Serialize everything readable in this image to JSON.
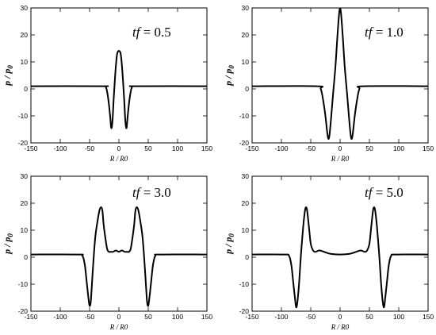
{
  "chart_data": [
    {
      "type": "line",
      "annotation": {
        "var": "tf",
        "value": "= 0.5"
      },
      "xlabel": "R / R0",
      "ylabel_main": "p",
      "ylabel_sep": " / ",
      "ylabel_sub_base": "p",
      "ylabel_sub": "0",
      "xlim": [
        -150,
        150
      ],
      "ylim": [
        -20,
        30
      ],
      "xticks": [
        -150,
        -100,
        -50,
        0,
        50,
        100,
        150
      ],
      "yticks": [
        -20,
        -10,
        0,
        10,
        20,
        30
      ],
      "series": [
        {
          "x": [
            -150,
            -30,
            -22,
            -18,
            -15,
            -13,
            -11,
            -9,
            -7,
            -5,
            -3,
            -1,
            0,
            1,
            3,
            5,
            7,
            9,
            11,
            13,
            15,
            18,
            22,
            30,
            150
          ],
          "y": [
            1,
            1,
            0.5,
            -4,
            -10,
            -14.5,
            -12,
            -4,
            3,
            9,
            13,
            14,
            14,
            14,
            13,
            9,
            3,
            -4,
            -12,
            -14.5,
            -10,
            -4,
            0.5,
            1,
            1
          ]
        }
      ]
    },
    {
      "type": "line",
      "annotation": {
        "var": "tf",
        "value": "= 1.0"
      },
      "xlabel": "R / R0",
      "ylabel_main": "p",
      "ylabel_sep": " / ",
      "ylabel_sub_base": "p",
      "ylabel_sub": "0",
      "xlim": [
        -150,
        150
      ],
      "ylim": [
        -20,
        30
      ],
      "xticks": [
        -150,
        -100,
        -50,
        0,
        50,
        100,
        150
      ],
      "yticks": [
        -20,
        -10,
        0,
        10,
        20,
        30
      ],
      "series": [
        {
          "x": [
            -150,
            -40,
            -33,
            -29,
            -25,
            -22,
            -20,
            -18,
            -15,
            -12,
            -8,
            -5,
            -2,
            0,
            2,
            5,
            8,
            12,
            15,
            18,
            20,
            22,
            25,
            29,
            33,
            40,
            150
          ],
          "y": [
            1,
            1,
            0,
            -4,
            -10,
            -16,
            -18.5,
            -17,
            -10,
            -2,
            8,
            18,
            27,
            30,
            27,
            18,
            8,
            -2,
            -10,
            -17,
            -18.5,
            -16,
            -10,
            -4,
            0,
            1,
            1
          ]
        }
      ]
    },
    {
      "type": "line",
      "annotation": {
        "var": "tf",
        "value": "= 3.0"
      },
      "xlabel": "R / R0",
      "ylabel_main": "p",
      "ylabel_sep": " / ",
      "ylabel_sub_base": "p",
      "ylabel_sub": "0",
      "xlim": [
        -150,
        150
      ],
      "ylim": [
        -20,
        30
      ],
      "xticks": [
        -150,
        -100,
        -50,
        0,
        50,
        100,
        150
      ],
      "yticks": [
        -20,
        -10,
        0,
        10,
        20,
        30
      ],
      "series": [
        {
          "x": [
            -150,
            -70,
            -62,
            -58,
            -55,
            -52,
            -50,
            -48,
            -46,
            -43,
            -40,
            -36,
            -33,
            -30,
            -28,
            -26,
            -23,
            -20,
            -17,
            -14,
            -10,
            -5,
            0,
            5,
            10,
            14,
            17,
            20,
            23,
            26,
            28,
            30,
            33,
            36,
            40,
            43,
            46,
            48,
            50,
            52,
            55,
            58,
            62,
            70,
            150
          ],
          "y": [
            1,
            1,
            0.5,
            -3,
            -9,
            -15,
            -18,
            -16.5,
            -10,
            0,
            8,
            14,
            17.5,
            18.5,
            17,
            12,
            7,
            3,
            2,
            2,
            2,
            2.5,
            2,
            2.5,
            2,
            2,
            2,
            3,
            7,
            12,
            17,
            18.5,
            17.5,
            14,
            8,
            0,
            -10,
            -16.5,
            -18,
            -15,
            -9,
            -3,
            0.5,
            1,
            1
          ]
        }
      ]
    },
    {
      "type": "line",
      "annotation": {
        "var": "tf",
        "value": "= 5.0"
      },
      "xlabel": "R / R0",
      "ylabel_main": "p",
      "ylabel_sep": " / ",
      "ylabel_sub_base": "p",
      "ylabel_sub": "0",
      "xlim": [
        -150,
        150
      ],
      "ylim": [
        -20,
        30
      ],
      "xticks": [
        -150,
        -100,
        -50,
        0,
        50,
        100,
        150
      ],
      "yticks": [
        -20,
        -10,
        0,
        10,
        20,
        30
      ],
      "series": [
        {
          "x": [
            -150,
            -95,
            -87,
            -83,
            -80,
            -77,
            -75,
            -73,
            -70,
            -67,
            -63,
            -60,
            -58,
            -56,
            -53,
            -50,
            -46,
            -42,
            -35,
            -25,
            -15,
            0,
            15,
            25,
            35,
            42,
            46,
            50,
            53,
            56,
            58,
            60,
            63,
            67,
            70,
            73,
            75,
            77,
            80,
            83,
            87,
            95,
            150
          ],
          "y": [
            1,
            1,
            0.5,
            -3,
            -9,
            -15,
            -18.5,
            -17,
            -10,
            0,
            11,
            17,
            18.5,
            17,
            11,
            5,
            2.5,
            2,
            2.5,
            1.8,
            1.2,
            1,
            1.2,
            1.8,
            2.5,
            2,
            2.5,
            5,
            11,
            17,
            18.5,
            17,
            11,
            0,
            -10,
            -17,
            -18.5,
            -15,
            -9,
            -3,
            0.5,
            1,
            1
          ]
        }
      ]
    }
  ]
}
